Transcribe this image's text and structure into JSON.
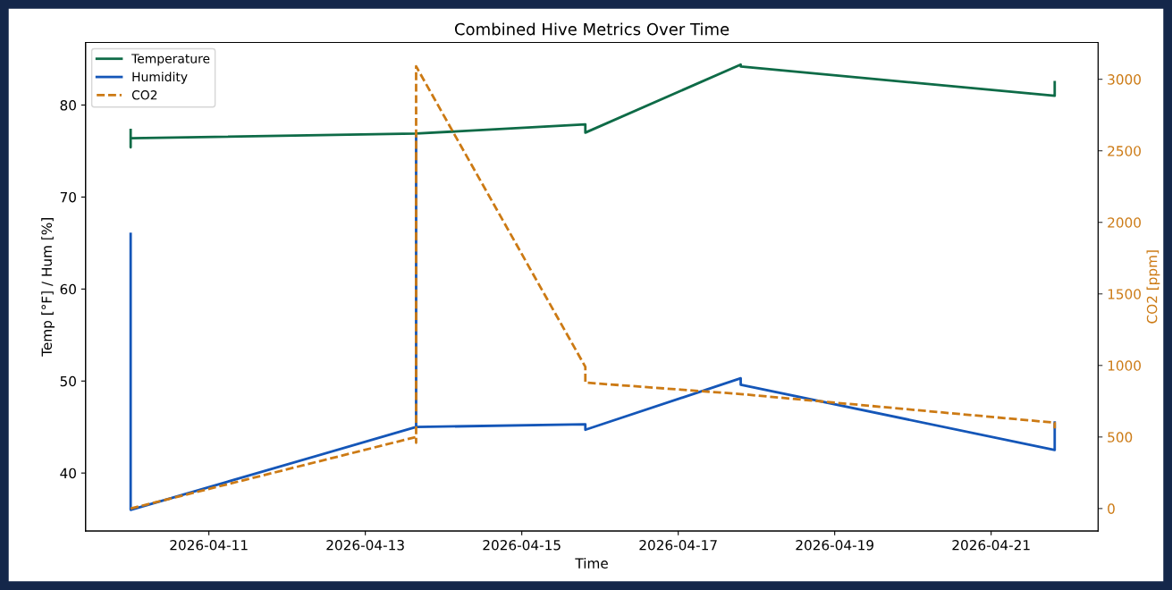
{
  "chart_data": {
    "type": "line",
    "title": "Combined Hive Metrics Over Time",
    "xlabel": "Time",
    "ylabel": "Temp [°F] / Hum [%]",
    "y2label": "CO2 [ppm]",
    "series": [
      {
        "name": "Temperature",
        "color": "#0e6b47",
        "x": [
          "2026-04-10T00:00",
          "2026-04-10T00:00",
          "2026-04-10T00:00",
          "2026-04-13T15:35",
          "2026-04-15T19:30",
          "2026-04-15T19:30",
          "2026-04-17T19:10",
          "2026-04-17T19:10",
          "2026-04-21T19:30",
          "2026-04-21T19:30"
        ],
        "values": [
          77.3,
          75.4,
          76.4,
          76.9,
          77.9,
          77.0,
          84.4,
          84.2,
          81.0,
          82.5
        ]
      },
      {
        "name": "Humidity",
        "color": "#1456b8",
        "x": [
          "2026-04-10T00:00",
          "2026-04-10T00:00",
          "2026-04-13T15:35",
          "2026-04-13T15:35",
          "2026-04-13T15:35",
          "2026-04-15T19:30",
          "2026-04-15T19:30",
          "2026-04-17T19:10",
          "2026-04-17T19:10",
          "2026-04-21T19:30",
          "2026-04-21T19:30"
        ],
        "values": [
          66.0,
          36.0,
          45.0,
          76.7,
          45.0,
          45.3,
          44.7,
          50.3,
          49.6,
          42.5,
          45.5
        ]
      },
      {
        "name": "CO2",
        "color": "#cc7a14",
        "axis": "y2",
        "line_style": "dashed",
        "x": [
          "2026-04-10T00:00",
          "2026-04-13T15:35",
          "2026-04-13T15:35",
          "2026-04-13T15:35",
          "2026-04-15T19:30",
          "2026-04-15T19:30",
          "2026-04-17T19:10",
          "2026-04-21T19:30",
          "2026-04-21T19:30"
        ],
        "values": [
          0,
          500,
          460,
          3090,
          990,
          880,
          800,
          600,
          560
        ]
      }
    ],
    "xlim": [
      "2026-04-09T10:10",
      "2026-04-22T08:50"
    ],
    "xticks": [
      {
        "value": "2026-04-11",
        "label": "2026-04-11"
      },
      {
        "value": "2026-04-13",
        "label": "2026-04-13"
      },
      {
        "value": "2026-04-15",
        "label": "2026-04-15"
      },
      {
        "value": "2026-04-17",
        "label": "2026-04-17"
      },
      {
        "value": "2026-04-19",
        "label": "2026-04-19"
      },
      {
        "value": "2026-04-21",
        "label": "2026-04-21"
      }
    ],
    "ylim": [
      33.7,
      86.8
    ],
    "yticks": [
      40,
      50,
      60,
      70,
      80
    ],
    "y2lim": [
      -157,
      3257
    ],
    "y2ticks": [
      0,
      500,
      1000,
      1500,
      2000,
      2500,
      3000
    ],
    "legend": "top left",
    "grid": false
  }
}
